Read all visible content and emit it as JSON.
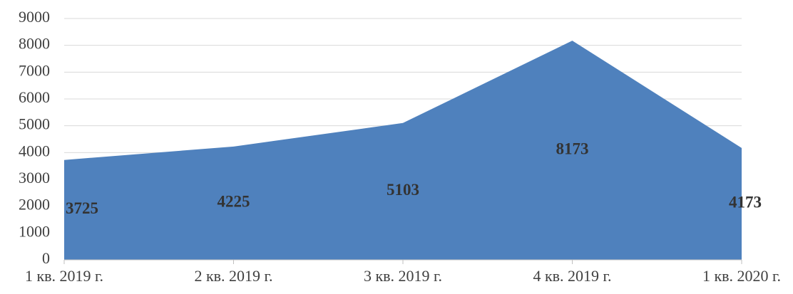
{
  "chart_data": {
    "type": "area",
    "categories": [
      "1 кв. 2019 г.",
      "2 кв. 2019 г.",
      "3 кв. 2019 г.",
      "4 кв. 2019 г.",
      "1 кв. 2020 г."
    ],
    "values": [
      3725,
      4225,
      5103,
      8173,
      4173
    ],
    "color": "#4f81bd",
    "ylim": [
      0,
      9000
    ],
    "yticks": [
      0,
      1000,
      2000,
      3000,
      4000,
      5000,
      6000,
      7000,
      8000,
      9000
    ],
    "grid": true
  }
}
